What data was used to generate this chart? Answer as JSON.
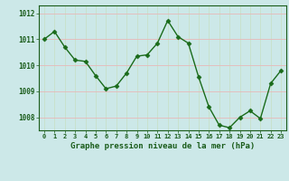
{
  "x": [
    0,
    1,
    2,
    3,
    4,
    5,
    6,
    7,
    8,
    9,
    10,
    11,
    12,
    13,
    14,
    15,
    16,
    17,
    18,
    19,
    20,
    21,
    22,
    23
  ],
  "y": [
    1011.0,
    1011.3,
    1010.7,
    1010.2,
    1010.15,
    1009.6,
    1009.1,
    1009.2,
    1009.7,
    1010.35,
    1010.4,
    1010.85,
    1011.72,
    1011.1,
    1010.85,
    1009.55,
    1008.4,
    1007.7,
    1007.6,
    1008.0,
    1008.25,
    1007.95,
    1009.3,
    1009.8
  ],
  "line_color": "#1a6b1a",
  "marker_color": "#1a6b1a",
  "bg_color": "#cce8e8",
  "grid_color_v": "#c8e0c8",
  "grid_color_h": "#e8b8b8",
  "tick_label_color": "#1a5c1a",
  "border_color": "#1a5c1a",
  "xlabel": "Graphe pression niveau de la mer (hPa)",
  "ylim_min": 1007.5,
  "ylim_max": 1012.3,
  "yticks": [
    1008,
    1009,
    1010,
    1011,
    1012
  ],
  "xticks": [
    0,
    1,
    2,
    3,
    4,
    5,
    6,
    7,
    8,
    9,
    10,
    11,
    12,
    13,
    14,
    15,
    16,
    17,
    18,
    19,
    20,
    21,
    22,
    23
  ]
}
